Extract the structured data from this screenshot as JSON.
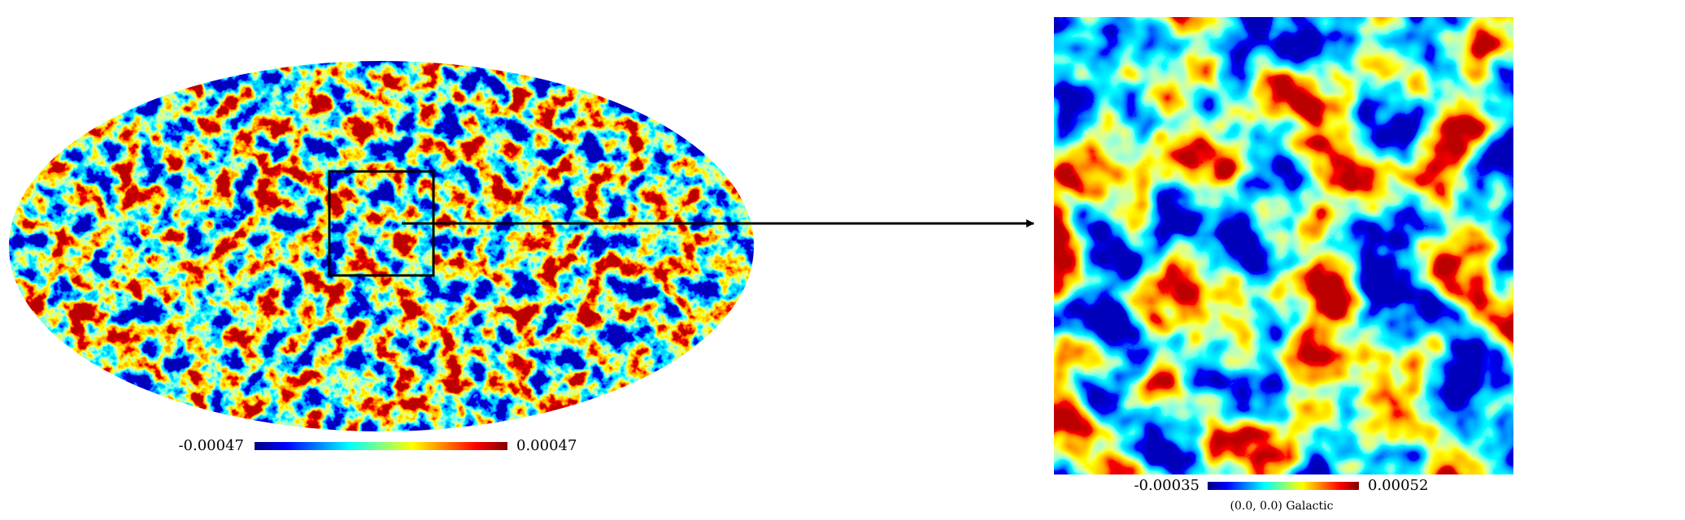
{
  "mollweide": {
    "colorbar": {
      "min": "-0.00047",
      "max": "0.00047"
    }
  },
  "zoom": {
    "colorbar": {
      "min": "-0.00035",
      "max": "0.00052"
    },
    "coord_label": "(0.0, 0.0) Galactic"
  }
}
